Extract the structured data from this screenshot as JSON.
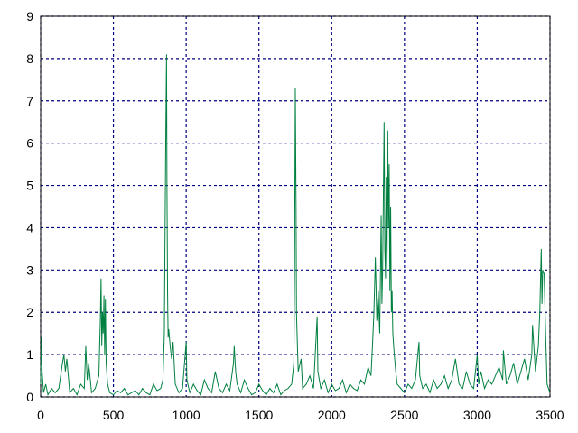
{
  "chart_data": {
    "type": "line",
    "xlim": [
      0,
      3500
    ],
    "xticks": [
      0,
      500,
      1000,
      1500,
      2000,
      2500,
      3000,
      3500
    ],
    "ylim": [
      0,
      9
    ],
    "yticks": [
      0,
      1,
      2,
      3,
      4,
      5,
      6,
      7,
      8,
      9
    ],
    "grid": true,
    "series": [
      {
        "color": "#008040",
        "x": [
          0,
          5,
          10,
          20,
          35,
          50,
          75,
          100,
          125,
          150,
          160,
          170,
          180,
          200,
          225,
          250,
          275,
          300,
          310,
          320,
          330,
          350,
          375,
          400,
          410,
          415,
          420,
          425,
          430,
          435,
          440,
          445,
          450,
          460,
          475,
          500,
          525,
          550,
          575,
          600,
          625,
          650,
          675,
          700,
          725,
          750,
          775,
          800,
          825,
          840,
          850,
          855,
          860,
          865,
          868,
          872,
          876,
          880,
          890,
          900,
          910,
          925,
          950,
          975,
          1000,
          1005,
          1025,
          1050,
          1075,
          1100,
          1125,
          1150,
          1175,
          1200,
          1225,
          1250,
          1275,
          1300,
          1325,
          1330,
          1340,
          1350,
          1375,
          1400,
          1425,
          1450,
          1475,
          1500,
          1525,
          1550,
          1575,
          1600,
          1625,
          1650,
          1675,
          1700,
          1725,
          1740,
          1745,
          1750,
          1755,
          1758,
          1762,
          1770,
          1790,
          1800,
          1825,
          1850,
          1875,
          1900,
          1905,
          1925,
          1950,
          1975,
          2000,
          2025,
          2050,
          2075,
          2100,
          2125,
          2150,
          2175,
          2200,
          2225,
          2250,
          2270,
          2280,
          2290,
          2300,
          2310,
          2320,
          2330,
          2340,
          2345,
          2350,
          2360,
          2365,
          2370,
          2375,
          2380,
          2385,
          2390,
          2395,
          2400,
          2405,
          2410,
          2415,
          2420,
          2430,
          2440,
          2450,
          2475,
          2500,
          2525,
          2550,
          2575,
          2600,
          2605,
          2625,
          2650,
          2675,
          2700,
          2725,
          2750,
          2775,
          2800,
          2825,
          2850,
          2875,
          2900,
          2925,
          2950,
          2975,
          3000,
          3010,
          3025,
          3050,
          3075,
          3100,
          3125,
          3150,
          3175,
          3180,
          3200,
          3225,
          3250,
          3275,
          3300,
          3325,
          3350,
          3375,
          3380,
          3400,
          3420,
          3430,
          3440,
          3445,
          3450,
          3460,
          3470,
          3480,
          3500
        ],
        "values": [
          0.3,
          1.4,
          0.6,
          0.1,
          0.3,
          0.05,
          0.2,
          0.1,
          0.2,
          0.8,
          1.0,
          0.6,
          0.9,
          0.1,
          0.2,
          0.05,
          0.3,
          0.2,
          1.2,
          0.4,
          0.8,
          0.1,
          0.2,
          0.5,
          1.8,
          2.8,
          1.2,
          2.0,
          1.5,
          2.4,
          1.0,
          2.3,
          0.8,
          0.3,
          0.1,
          0.05,
          0.15,
          0.1,
          0.2,
          0.05,
          0.1,
          0.15,
          0.05,
          0.2,
          0.1,
          0.05,
          0.3,
          0.15,
          0.2,
          0.4,
          1.5,
          4.0,
          6.2,
          8.1,
          5.0,
          2.5,
          1.4,
          1.6,
          1.2,
          0.9,
          1.3,
          0.3,
          0.1,
          0.2,
          1.3,
          0.4,
          0.1,
          0.3,
          0.15,
          0.05,
          0.4,
          0.2,
          0.1,
          0.6,
          0.2,
          0.1,
          0.3,
          0.15,
          0.8,
          1.2,
          0.6,
          0.3,
          0.1,
          0.4,
          0.2,
          0.05,
          0.1,
          0.3,
          0.15,
          0.05,
          0.2,
          0.1,
          0.3,
          0.05,
          0.15,
          0.2,
          0.3,
          0.8,
          3.0,
          7.3,
          4.6,
          2.0,
          1.5,
          0.6,
          0.9,
          0.2,
          0.3,
          0.5,
          0.2,
          1.9,
          0.6,
          0.2,
          0.4,
          0.1,
          0.3,
          0.15,
          0.2,
          0.4,
          0.1,
          0.3,
          0.2,
          0.15,
          0.4,
          0.3,
          0.7,
          0.5,
          1.2,
          2.0,
          3.3,
          1.8,
          2.5,
          1.5,
          4.3,
          2.2,
          3.0,
          6.5,
          3.5,
          2.8,
          5.2,
          3.0,
          6.3,
          4.0,
          5.5,
          2.5,
          4.5,
          2.0,
          2.5,
          1.5,
          1.0,
          0.6,
          0.3,
          0.2,
          0.1,
          0.3,
          0.2,
          0.4,
          1.3,
          0.5,
          0.2,
          0.3,
          0.1,
          0.4,
          0.2,
          0.3,
          0.5,
          0.2,
          0.4,
          0.9,
          0.3,
          0.2,
          0.6,
          0.3,
          0.2,
          1.0,
          0.3,
          0.6,
          0.2,
          0.4,
          0.3,
          0.5,
          0.7,
          0.4,
          1.1,
          0.3,
          0.5,
          0.8,
          0.3,
          0.6,
          0.9,
          0.4,
          1.0,
          1.7,
          0.6,
          1.2,
          2.0,
          3.5,
          2.2,
          3.0,
          2.9,
          1.5,
          0.3,
          0.1
        ]
      }
    ]
  }
}
